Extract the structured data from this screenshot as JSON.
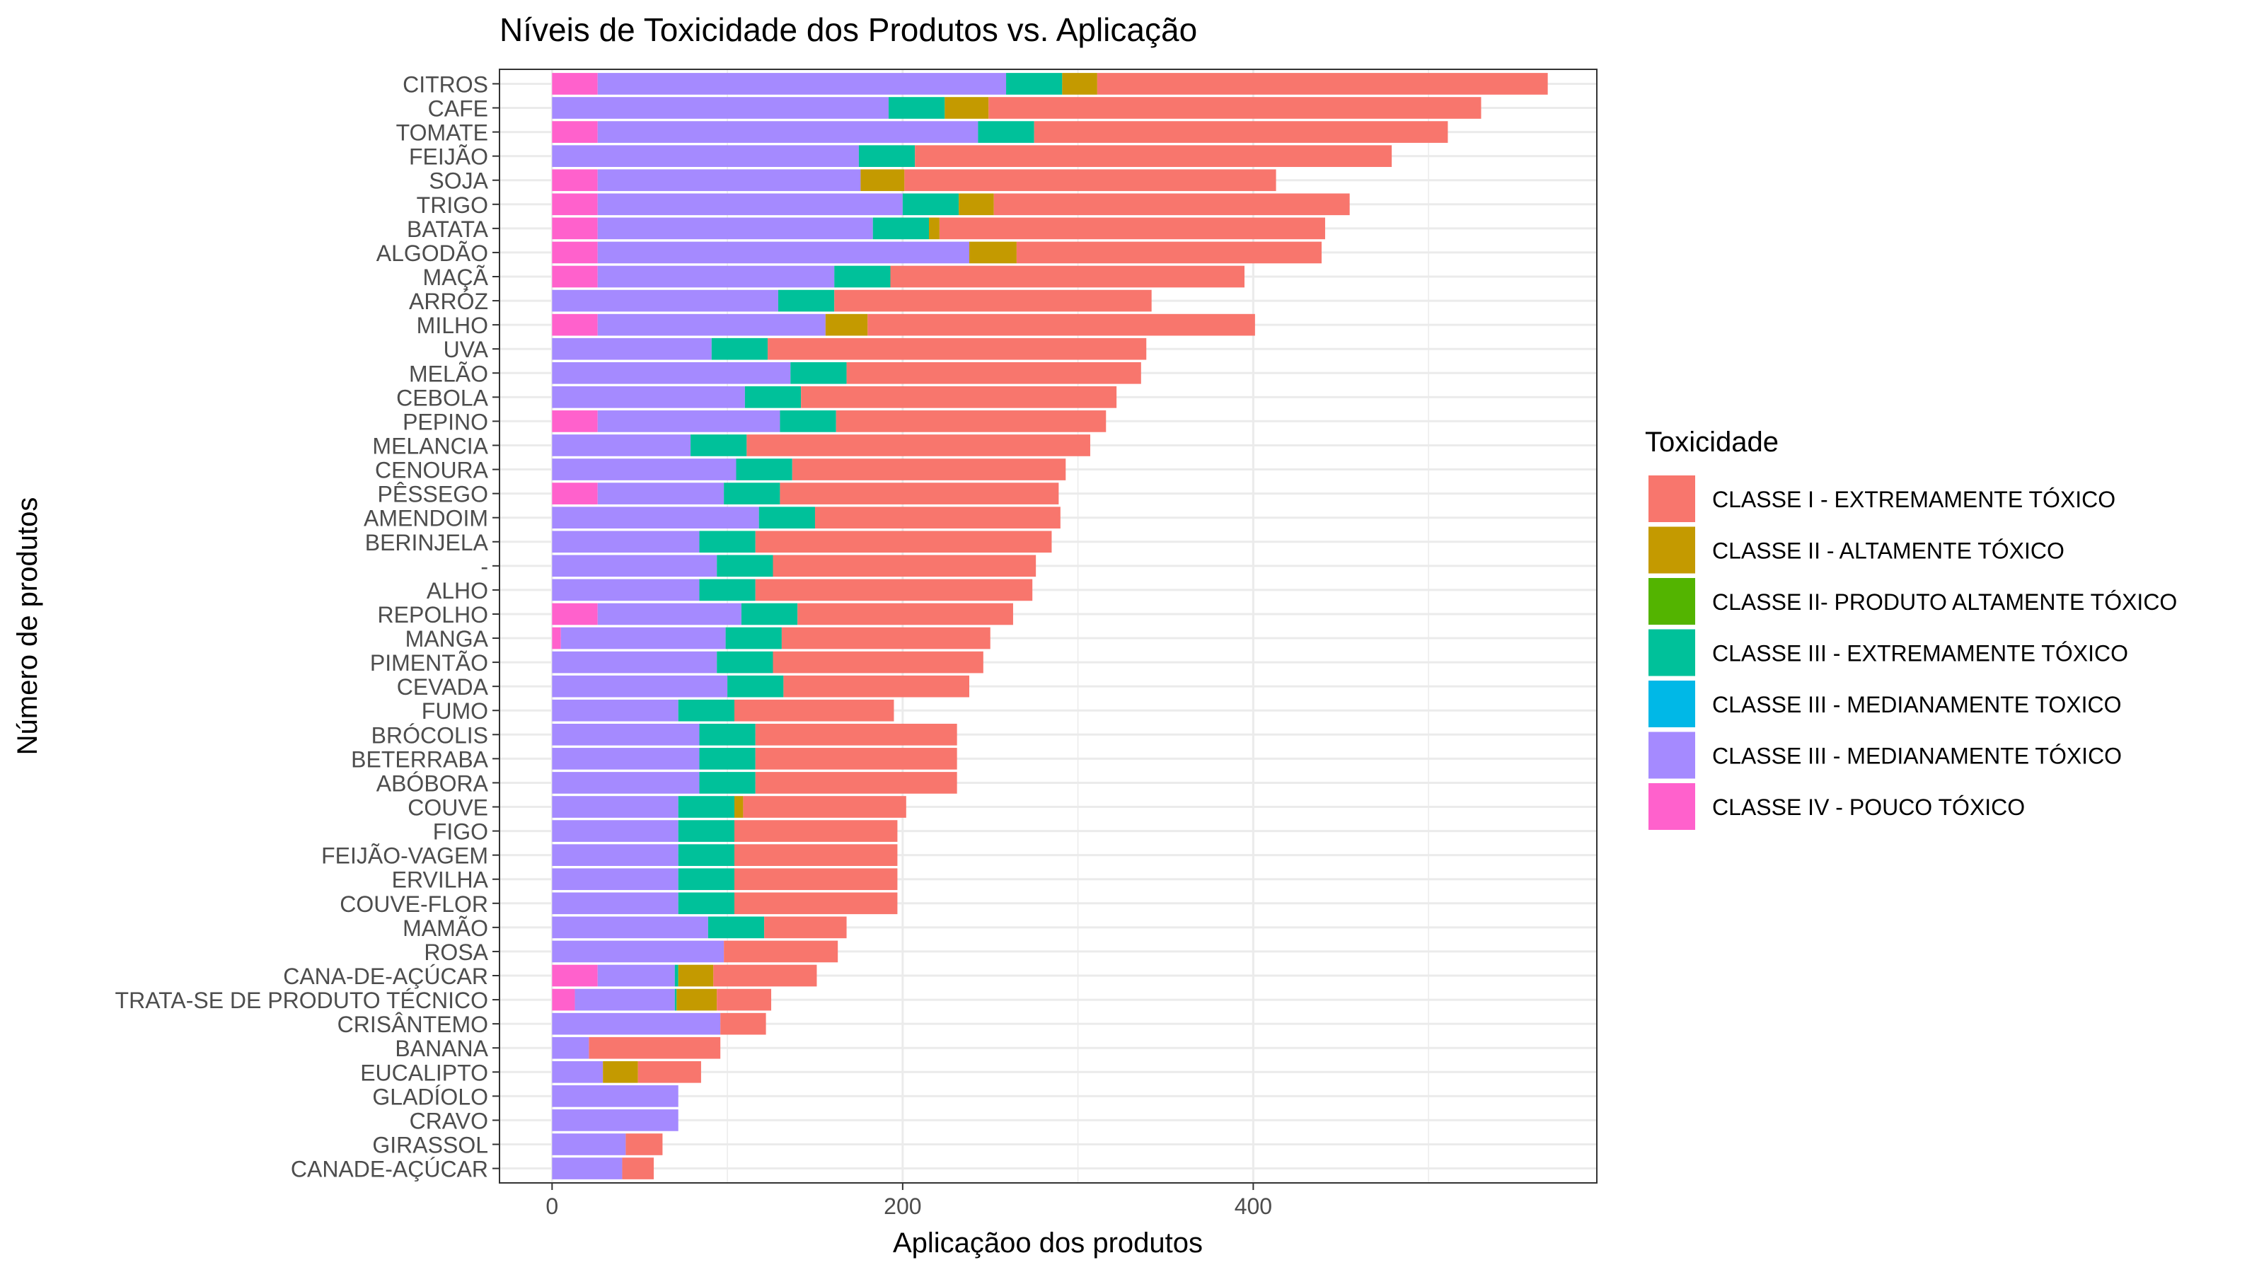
{
  "chart_data": {
    "type": "bar",
    "orientation": "horizontal",
    "stacked": true,
    "title": "Níveis de Toxicidade dos Produtos vs. Aplicação",
    "xlabel": "Aplicaçãoo dos produtos",
    "ylabel": "Número de produtos",
    "xlim": [
      -30,
      596
    ],
    "xticks": [
      0,
      200,
      400
    ],
    "grid": true,
    "legend_position": "right",
    "legend_title": "Toxicidade",
    "categories": [
      "CITROS",
      "CAFE",
      "TOMATE",
      "FEIJÃO",
      "SOJA",
      "TRIGO",
      "BATATA",
      "ALGODÃO",
      "MAÇÃ",
      "ARRÓZ",
      "MILHO",
      "UVA",
      "MELÃO",
      "CEBOLA",
      "PEPINO",
      "MELANCIA",
      "CENOURA",
      "PÊSSEGO",
      "AMENDOIM",
      "BERINJELA",
      "-",
      "ALHO",
      "REPOLHO",
      "MANGA",
      "PIMENTÃO",
      "CEVADA",
      "FUMO",
      "BRÓCOLIS",
      "BETERRABA",
      "ABÓBORA",
      "COUVE",
      "FIGO",
      "FEIJÃO-VAGEM",
      "ERVILHA",
      "COUVE-FLOR",
      "MAMÃO",
      "ROSA",
      "CANA-DE-AÇÚCAR",
      "TRATA-SE DE PRODUTO TÉCNICO",
      "CRISÂNTEMO",
      "BANANA",
      "EUCALIPTO",
      "GLADÍOLO",
      "CRAVO",
      "GIRASSOL",
      "CANADE-AÇÚCAR"
    ],
    "series": [
      {
        "name": "CLASSE IV - POUCO TÓXICO",
        "color": "#FF61CC",
        "values": [
          26,
          0,
          26,
          0,
          26,
          26,
          26,
          26,
          26,
          0,
          26,
          0,
          0,
          0,
          26,
          0,
          0,
          26,
          0,
          0,
          0,
          0,
          26,
          5,
          0,
          0,
          0,
          0,
          0,
          0,
          0,
          0,
          0,
          0,
          0,
          0,
          0,
          26,
          13,
          0,
          0,
          0,
          0,
          0,
          0,
          0
        ]
      },
      {
        "name": "CLASSE III - MEDIANAMENTE TÓXICO",
        "color": "#A58AFF",
        "values": [
          233,
          192,
          217,
          175,
          150,
          174,
          157,
          212,
          135,
          129,
          130,
          91,
          136,
          110,
          104,
          79,
          105,
          72,
          118,
          84,
          94,
          84,
          82,
          94,
          94,
          100,
          72,
          84,
          84,
          84,
          72,
          72,
          72,
          72,
          72,
          89,
          98,
          44,
          57,
          96,
          21,
          29,
          72,
          72,
          42,
          40
        ]
      },
      {
        "name": "CLASSE III - MEDIANAMENTE TOXICO",
        "color": "#00B8E7",
        "values": [
          0,
          0,
          0,
          0,
          0,
          0,
          0,
          0,
          0,
          0,
          0,
          0,
          0,
          0,
          0,
          0,
          0,
          0,
          0,
          0,
          0,
          0,
          0,
          0,
          0,
          0,
          0,
          0,
          0,
          0,
          0,
          0,
          0,
          0,
          0,
          0,
          0,
          0,
          0,
          0,
          0,
          0,
          0,
          0,
          0,
          0
        ]
      },
      {
        "name": "CLASSE III - EXTREMAMENTE TÓXICO",
        "color": "#00C19A",
        "values": [
          32,
          32,
          32,
          32,
          0,
          32,
          32,
          0,
          32,
          32,
          0,
          32,
          32,
          32,
          32,
          32,
          32,
          32,
          32,
          32,
          32,
          32,
          32,
          32,
          32,
          32,
          32,
          32,
          32,
          32,
          32,
          32,
          32,
          32,
          32,
          32,
          0,
          2,
          1,
          0,
          0,
          0,
          0,
          0,
          0,
          0
        ]
      },
      {
        "name": "CLASSE II- PRODUTO ALTAMENTE TÓXICO",
        "color": "#53B400",
        "values": [
          0,
          0,
          0,
          0,
          0,
          0,
          0,
          0,
          0,
          0,
          0,
          0,
          0,
          0,
          0,
          0,
          0,
          0,
          0,
          0,
          0,
          0,
          0,
          0,
          0,
          0,
          0,
          0,
          0,
          0,
          0,
          0,
          0,
          0,
          0,
          0,
          0,
          0,
          0,
          0,
          0,
          0,
          0,
          0,
          0,
          0
        ]
      },
      {
        "name": "CLASSE II - ALTAMENTE TÓXICO",
        "color": "#C49A00",
        "values": [
          20,
          25,
          0,
          0,
          25,
          20,
          6,
          27,
          0,
          0,
          24,
          0,
          0,
          0,
          0,
          0,
          0,
          0,
          0,
          0,
          0,
          0,
          0,
          0,
          0,
          0,
          0,
          0,
          0,
          0,
          5,
          0,
          0,
          0,
          0,
          0,
          0,
          20,
          23,
          0,
          0,
          20,
          0,
          0,
          0,
          0
        ]
      },
      {
        "name": "CLASSE I - EXTREMAMENTE TÓXICO",
        "color": "#F8766D",
        "values": [
          257,
          281,
          236,
          272,
          212,
          203,
          220,
          174,
          202,
          181,
          221,
          216,
          168,
          180,
          154,
          196,
          156,
          159,
          140,
          169,
          150,
          158,
          123,
          119,
          120,
          106,
          91,
          115,
          115,
          115,
          93,
          93,
          93,
          93,
          93,
          47,
          65,
          59,
          31,
          26,
          75,
          36,
          0,
          0,
          21,
          18
        ]
      }
    ]
  }
}
